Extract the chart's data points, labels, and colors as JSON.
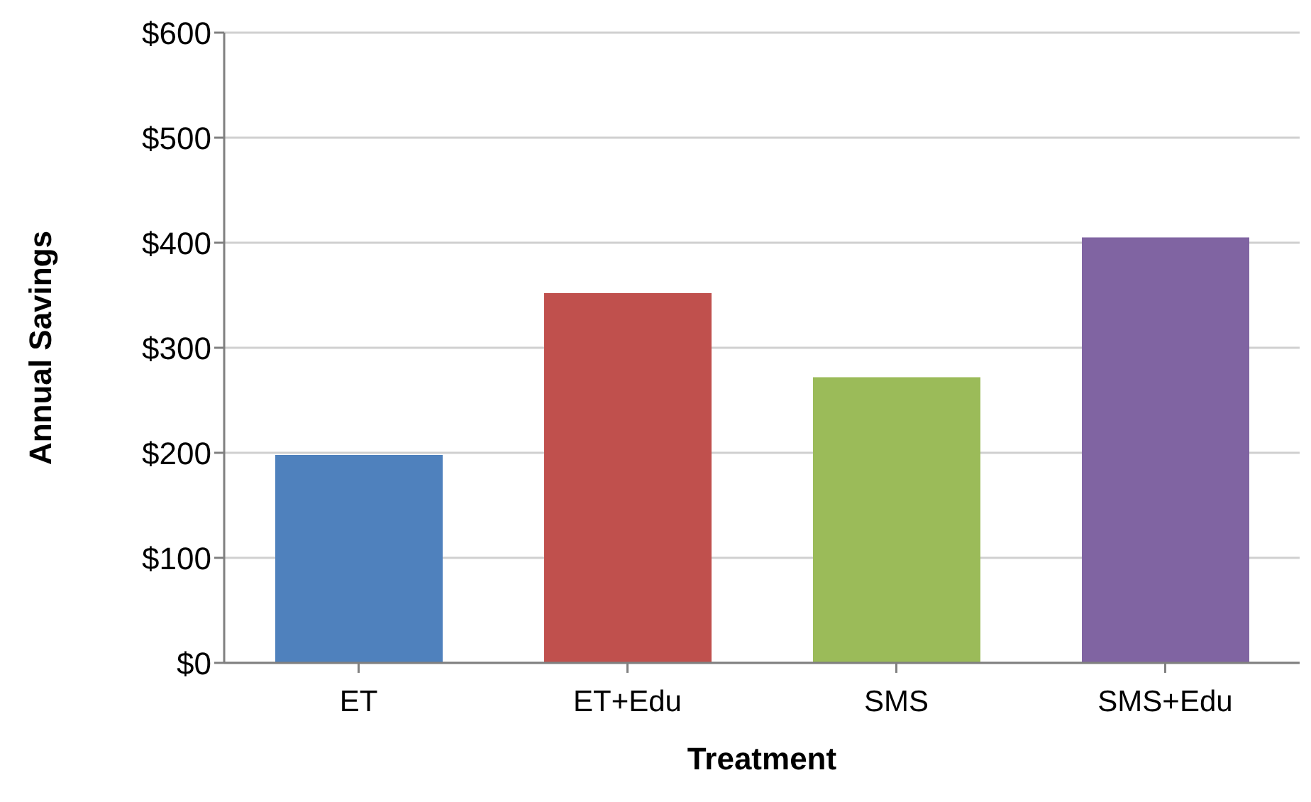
{
  "chart_data": {
    "type": "bar",
    "xlabel": "Treatment",
    "ylabel": "Annual Savings",
    "categories": [
      "ET",
      "ET+Edu",
      "SMS",
      "SMS+Edu"
    ],
    "values": [
      198,
      352,
      272,
      405
    ],
    "colors": [
      "#4f81bd",
      "#c0504d",
      "#9bbb59",
      "#8064a2"
    ],
    "ylim": [
      0,
      600
    ],
    "yticks": [
      {
        "value": 0,
        "label": "$0"
      },
      {
        "value": 100,
        "label": "$100"
      },
      {
        "value": 200,
        "label": "$200"
      },
      {
        "value": 300,
        "label": "$300"
      },
      {
        "value": 400,
        "label": "$400"
      },
      {
        "value": 500,
        "label": "$500"
      },
      {
        "value": 600,
        "label": "$600"
      }
    ],
    "grid": "y"
  }
}
